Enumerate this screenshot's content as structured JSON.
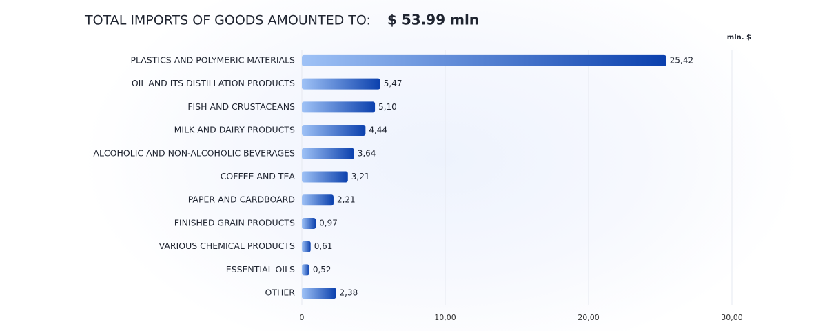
{
  "chart_data": {
    "type": "hbar",
    "subtitle": "TOTAL IMPORTS OF GOODS AMOUNTED TO:",
    "total": "$ 53.99  mln",
    "unit_label": "mln. $",
    "categories": [
      "PLASTICS AND POLYMERIC MATERIALS",
      "OIL AND ITS DISTILLATION PRODUCTS",
      "FISH AND CRUSTACEANS",
      "MILK AND DAIRY PRODUCTS",
      "ALCOHOLIC AND NON-ALCOHOLIC BEVERAGES",
      "COFFEE AND TEA",
      "PAPER AND CARDBOARD",
      "FINISHED GRAIN PRODUCTS",
      "VARIOUS CHEMICAL PRODUCTS",
      "ESSENTIAL OILS",
      "OTHER"
    ],
    "values": [
      25.42,
      5.47,
      5.1,
      4.44,
      3.64,
      3.21,
      2.21,
      0.97,
      0.61,
      0.52,
      2.38
    ],
    "value_labels": [
      "25,42",
      "5,47",
      "5,10",
      "4,44",
      "3,64",
      "3,21",
      "2,21",
      "0,97",
      "0,61",
      "0,52",
      "2,38"
    ],
    "color": "#0b40ad",
    "xlim": [
      0,
      30
    ],
    "xticks": [
      0,
      {
        "value": 10,
        "label": "10,00"
      },
      {
        "value": 20,
        "label": "20,00"
      },
      {
        "value": 30,
        "label": "30,00"
      }
    ],
    "grid": true
  }
}
